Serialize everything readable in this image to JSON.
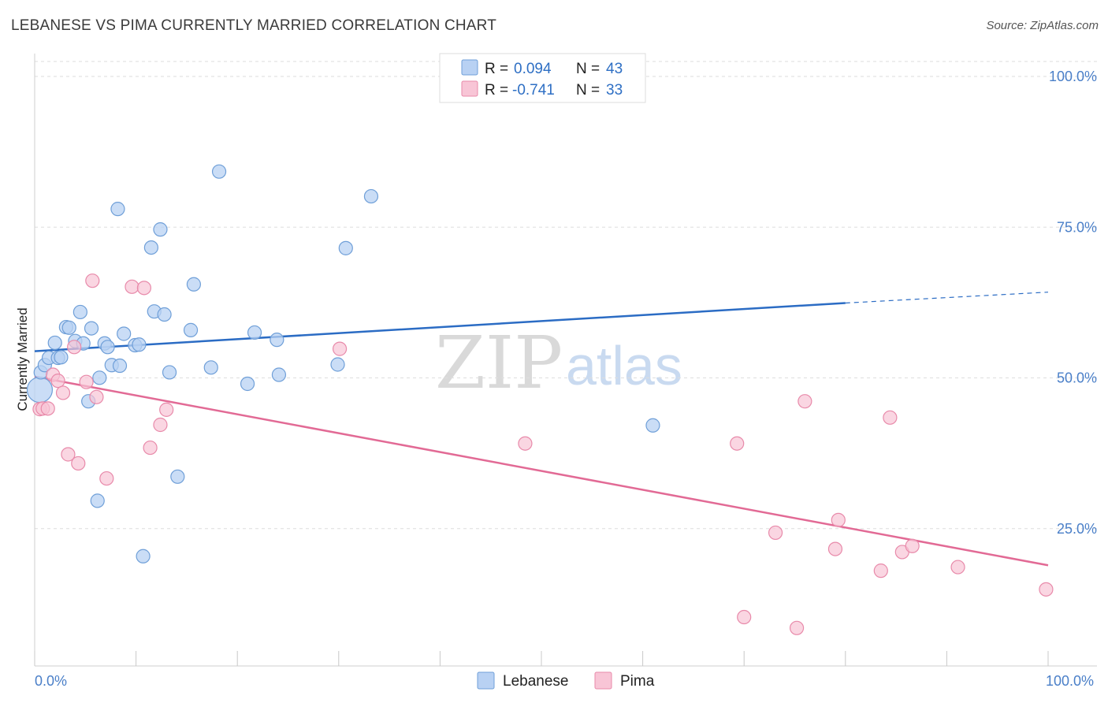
{
  "header": {
    "title": "LEBANESE VS PIMA CURRENTLY MARRIED CORRELATION CHART",
    "source": "Source: ZipAtlas.com"
  },
  "watermark": {
    "zip": "ZIP",
    "atlas": "atlas"
  },
  "legend": {
    "lebanese": {
      "r_label": "R =",
      "r_value": "0.094",
      "n_label": "N =",
      "n_value": "43"
    },
    "pima": {
      "r_label": "R =",
      "r_value": "-0.741",
      "n_label": "N =",
      "n_value": "33"
    }
  },
  "colors": {
    "lebanese_fill": "#b8d1f3",
    "lebanese_stroke": "#6f9fd8",
    "lebanese_line": "#2b6cc4",
    "pima_fill": "#f8c5d6",
    "pima_stroke": "#e88aaa",
    "pima_line": "#e26a95",
    "tick_text": "#4a7fc8"
  },
  "chart_data": {
    "type": "scatter",
    "title": "LEBANESE VS PIMA CURRENTLY MARRIED CORRELATION CHART",
    "xlabel": "",
    "ylabel": "Currently Married",
    "xlim": [
      0,
      100
    ],
    "ylim": [
      0,
      100
    ],
    "x_tick_labels": [
      "0.0%",
      "100.0%"
    ],
    "y_ticks": [
      25,
      50,
      75,
      100
    ],
    "y_tick_labels": [
      "25.0%",
      "50.0%",
      "75.0%",
      "100.0%"
    ],
    "grid": true,
    "legend_position": "bottom-center",
    "series": [
      {
        "name": "Lebanese",
        "points": [
          [
            0.5,
            45.8
          ],
          [
            0.6,
            48.7
          ],
          [
            1.0,
            49.9
          ],
          [
            1.4,
            51.1
          ],
          [
            2.0,
            53.6
          ],
          [
            2.3,
            51.1
          ],
          [
            2.6,
            51.2
          ],
          [
            3.1,
            56.2
          ],
          [
            3.4,
            56.1
          ],
          [
            4.0,
            53.9
          ],
          [
            4.5,
            58.7
          ],
          [
            4.8,
            53.5
          ],
          [
            5.3,
            43.9
          ],
          [
            5.6,
            56.0
          ],
          [
            6.2,
            27.4
          ],
          [
            6.4,
            47.8
          ],
          [
            6.9,
            53.5
          ],
          [
            7.2,
            52.9
          ],
          [
            7.6,
            49.9
          ],
          [
            8.2,
            75.8
          ],
          [
            8.4,
            49.8
          ],
          [
            8.8,
            55.1
          ],
          [
            9.9,
            53.2
          ],
          [
            10.3,
            53.3
          ],
          [
            10.7,
            18.2
          ],
          [
            11.5,
            69.4
          ],
          [
            11.8,
            58.8
          ],
          [
            12.4,
            72.4
          ],
          [
            12.8,
            58.3
          ],
          [
            13.3,
            48.7
          ],
          [
            14.1,
            31.4
          ],
          [
            15.4,
            55.7
          ],
          [
            15.7,
            63.3
          ],
          [
            17.4,
            49.5
          ],
          [
            18.2,
            82.0
          ],
          [
            21.0,
            46.8
          ],
          [
            21.7,
            55.3
          ],
          [
            23.9,
            54.1
          ],
          [
            24.1,
            48.3
          ],
          [
            29.9,
            50.0
          ],
          [
            30.7,
            69.3
          ],
          [
            33.2,
            77.9
          ],
          [
            61.0,
            39.9
          ]
        ],
        "trend": {
          "x0": 0,
          "y0": 52.2,
          "x1": 80,
          "y1": 60.2,
          "dashed_to": 100,
          "dashed_y": 62.0
        }
      },
      {
        "name": "Pima",
        "points": [
          [
            0.5,
            42.6
          ],
          [
            0.8,
            42.7
          ],
          [
            1.3,
            42.7
          ],
          [
            1.8,
            48.3
          ],
          [
            2.3,
            47.3
          ],
          [
            2.8,
            45.3
          ],
          [
            3.3,
            35.1
          ],
          [
            3.9,
            52.9
          ],
          [
            4.3,
            33.6
          ],
          [
            5.1,
            47.1
          ],
          [
            5.7,
            63.9
          ],
          [
            6.1,
            44.6
          ],
          [
            7.1,
            31.1
          ],
          [
            9.6,
            62.9
          ],
          [
            10.8,
            62.7
          ],
          [
            11.4,
            36.2
          ],
          [
            12.4,
            40.0
          ],
          [
            13.0,
            42.5
          ],
          [
            30.1,
            52.6
          ],
          [
            48.4,
            36.9
          ],
          [
            69.3,
            36.9
          ],
          [
            70.0,
            8.1
          ],
          [
            73.1,
            22.1
          ],
          [
            75.2,
            6.3
          ],
          [
            76.0,
            43.9
          ],
          [
            79.0,
            19.4
          ],
          [
            79.3,
            24.2
          ],
          [
            83.5,
            15.8
          ],
          [
            84.4,
            41.2
          ],
          [
            85.6,
            18.9
          ],
          [
            86.6,
            19.9
          ],
          [
            91.1,
            16.4
          ],
          [
            99.8,
            12.7
          ]
        ],
        "trend": {
          "x0": 0,
          "y0": 48.0,
          "x1": 100,
          "y1": 16.7
        }
      }
    ]
  }
}
